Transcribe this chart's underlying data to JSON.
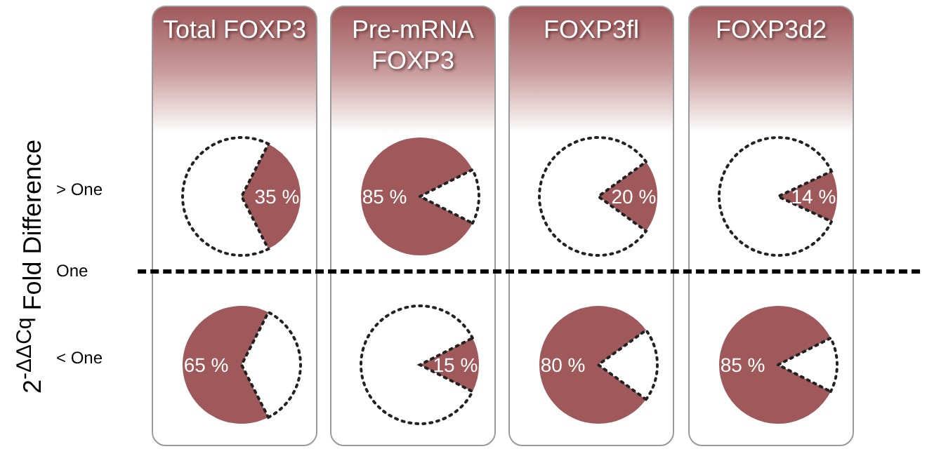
{
  "chart_data": [
    {
      "type": "pie",
      "title": "Total FOXP3",
      "ylabel": "2$^{-ΔΔCq}$ Fold Difference",
      "annotations": [
        "> One",
        "One",
        "< One"
      ],
      "categories": [
        null,
        null
      ],
      "values": [
        35,
        65
      ],
      "colors": [
        "#a0595b",
        "#ffffff"
      ],
      "value_labels": [
        "35 %",
        null
      ],
      "line_style": "dotted"
    },
    {
      "type": "pie",
      "title": "Pre-mRNA FOXP3",
      "categories": [
        null,
        null
      ],
      "values": [
        85,
        15
      ],
      "colors": [
        "#a0595b",
        "#ffffff"
      ],
      "value_labels": [
        "85 %",
        null
      ],
      "line_style": "dotted"
    },
    {
      "type": "pie",
      "title": "FOXP3fl",
      "categories": [
        null,
        null
      ],
      "values": [
        20,
        80
      ],
      "colors": [
        "#a0595b",
        "#ffffff"
      ],
      "value_labels": [
        "20 %",
        null
      ],
      "line_style": "dotted"
    },
    {
      "type": "pie",
      "title": "FOXP3d2",
      "categories": [
        null,
        null
      ],
      "values": [
        14,
        86
      ],
      "colors": [
        "#a0595b",
        "#ffffff"
      ],
      "value_labels": [
        "14 %",
        null
      ],
      "line_style": "dotted"
    },
    {
      "type": "pie",
      "categories": [
        null,
        null
      ],
      "values": [
        65,
        35
      ],
      "colors": [
        "#a0595b",
        "#ffffff"
      ],
      "value_labels": [
        "65 %",
        null
      ],
      "line_style": "dotted"
    },
    {
      "type": "pie",
      "categories": [
        null,
        null
      ],
      "values": [
        15,
        85
      ],
      "colors": [
        "#a0595b",
        "#ffffff"
      ],
      "value_labels": [
        "15 %",
        null
      ],
      "line_style": "dotted"
    },
    {
      "type": "pie",
      "categories": [
        null,
        null
      ],
      "values": [
        80,
        20
      ],
      "colors": [
        "#a0595b",
        "#ffffff"
      ],
      "value_labels": [
        "80 %",
        null
      ],
      "line_style": "dotted"
    },
    {
      "type": "pie",
      "categories": [
        null,
        null
      ],
      "values": [
        85,
        15
      ],
      "colors": [
        "#a0595b",
        "#ffffff"
      ],
      "value_labels": [
        "85 %",
        null
      ],
      "line_style": "dotted"
    }
  ]
}
